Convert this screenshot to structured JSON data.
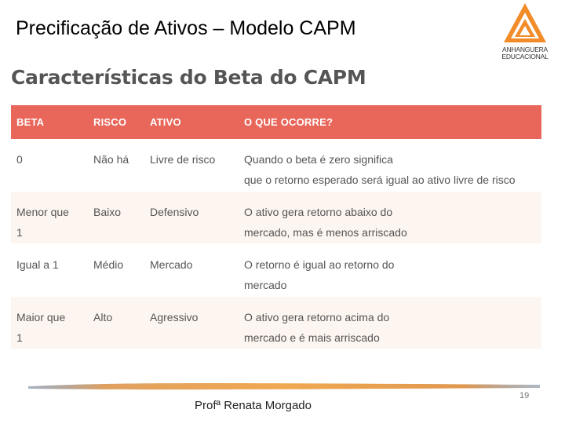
{
  "slide": {
    "title": "Precificação de Ativos – Modelo CAPM",
    "subtitle": "Características do Beta do CAPM",
    "footer_name": "Profª Renata Morgado",
    "page_number": "19"
  },
  "logo": {
    "line1": "ANHANGUERA",
    "line2": "EDUCACIONAL",
    "color": "#f28c28"
  },
  "table": {
    "header_color": "#e8665a",
    "headers": [
      "BETA",
      "RISCO",
      "ATIVO",
      "O QUE OCORRE?"
    ],
    "rows": [
      {
        "beta": [
          "0"
        ],
        "risco": "Não há",
        "ativo": "Livre de risco",
        "ocorre": [
          "Quando o beta é zero significa",
          "que o retorno esperado será igual ao ativo livre de risco"
        ]
      },
      {
        "beta": [
          "Menor que",
          "1"
        ],
        "risco": "Baixo",
        "ativo": "Defensivo",
        "ocorre": [
          "O ativo gera retorno abaixo do",
          "mercado, mas é menos arriscado"
        ]
      },
      {
        "beta": [
          "Igual a 1"
        ],
        "risco": "Médio",
        "ativo": "Mercado",
        "ocorre": [
          "O retorno é igual ao retorno do",
          "mercado"
        ]
      },
      {
        "beta": [
          "Maior que",
          "1"
        ],
        "risco": "Alto",
        "ativo": "Agressivo",
        "ocorre": [
          "O ativo gera retorno acima do",
          "mercado e é mais arriscado"
        ]
      }
    ]
  }
}
